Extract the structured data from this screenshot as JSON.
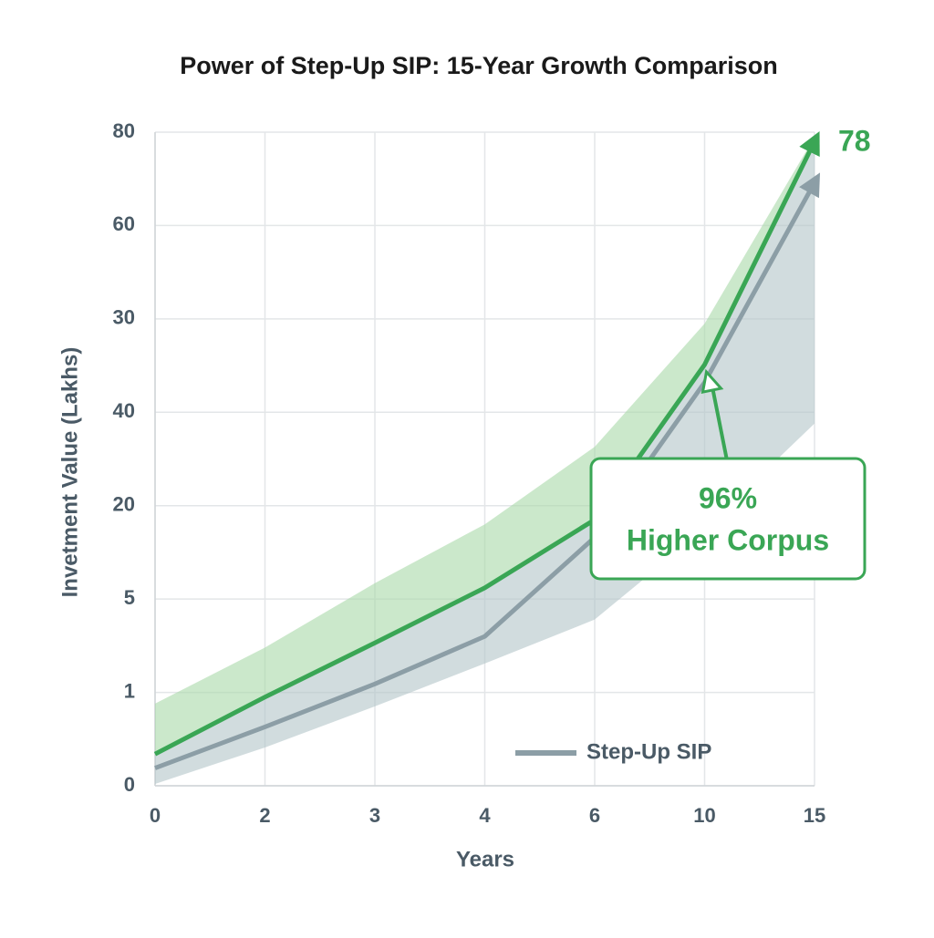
{
  "chart_data": {
    "type": "line",
    "title": "Power of Step-Up SIP: 15-Year Growth Comparison",
    "x_label": "Years",
    "y_label": "Invetment Value (Lakhs)",
    "categories": [
      "0",
      "2",
      "3",
      "4",
      "6",
      "10",
      "15"
    ],
    "ylim": [
      0,
      7
    ],
    "yticks": [
      0,
      {
        "value": 1,
        "label": "1"
      },
      {
        "value": 2,
        "label": "5"
      },
      {
        "value": 3,
        "label": "20"
      },
      {
        "value": 4,
        "label": "40"
      },
      {
        "value": 5,
        "label": "30"
      },
      {
        "value": 6,
        "label": "60"
      },
      {
        "value": 7,
        "label": "80"
      }
    ],
    "grid": true,
    "legend": "bottom-right",
    "series": [
      {
        "color": "#3aa655",
        "band_color": "#a8d8a8",
        "values": [
          0.34,
          0.95,
          1.53,
          2.12,
          2.85,
          4.51,
          6.9
        ],
        "upper": [
          0.88,
          1.48,
          2.17,
          2.8,
          3.63,
          4.95,
          6.95
        ]
      },
      {
        "name": "Step-Up SIP",
        "color": "#8c9ea6",
        "band_color": "#b3c4c8",
        "values": [
          0.19,
          0.63,
          1.09,
          1.6,
          2.66,
          4.32,
          6.46
        ],
        "lower": [
          0.02,
          0.41,
          0.85,
          1.31,
          1.78,
          2.75,
          3.88
        ]
      }
    ],
    "annotations": {
      "end_label": "78",
      "callout": [
        "96%",
        "Higher Corpus"
      ]
    }
  }
}
